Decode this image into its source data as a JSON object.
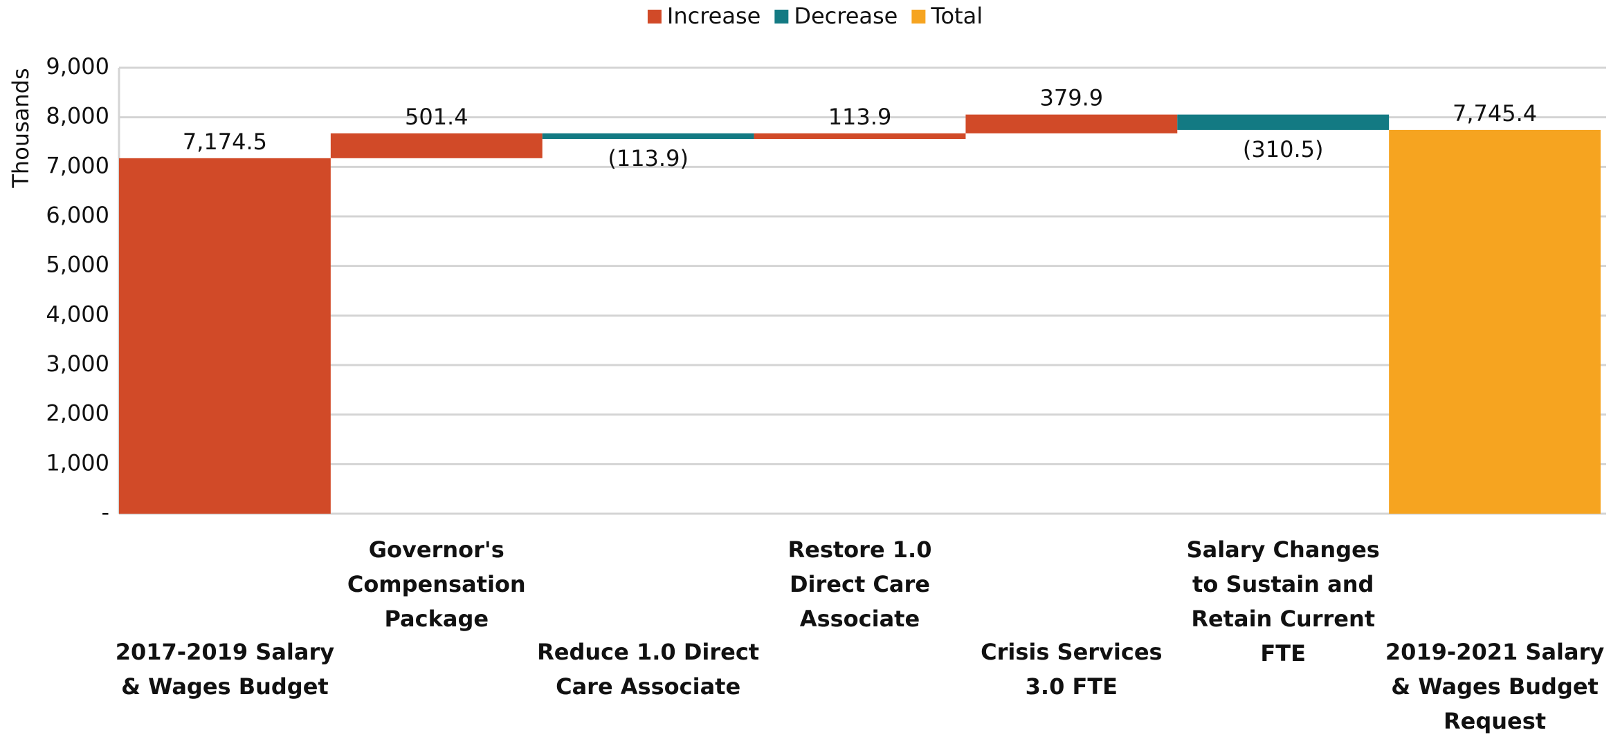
{
  "chart_data": {
    "type": "waterfall",
    "y_label": "Thousands",
    "categories": [
      "2017-2019 Salary & Wages Budget",
      "Governor's Compensation Package",
      "Reduce 1.0 Direct Care Associate",
      "Restore 1.0 Direct Care Associate",
      "Crisis Services 3.0 FTE",
      "Salary Changes to Sustain and Retain Current FTE",
      "2019-2021 Salary & Wages Budget Request"
    ],
    "values": [
      7174.5,
      501.4,
      -113.9,
      113.9,
      379.9,
      -310.5,
      7745.4
    ],
    "value_labels": [
      "7,174.5",
      "501.4",
      "(113.9)",
      "113.9",
      "379.9",
      "(310.5)",
      "7,745.4"
    ],
    "kinds": [
      "Increase",
      "Increase",
      "Decrease",
      "Increase",
      "Increase",
      "Decrease",
      "Total"
    ],
    "legend": [
      {
        "name": "Increase",
        "color": "#d14a28"
      },
      {
        "name": "Decrease",
        "color": "#137a83"
      },
      {
        "name": "Total",
        "color": "#f6a420"
      }
    ],
    "ylim": [
      0,
      9000
    ],
    "yticks": [
      {
        "value": 0,
        "label": "-"
      },
      {
        "value": 1000,
        "label": "1,000"
      },
      {
        "value": 2000,
        "label": "2,000"
      },
      {
        "value": 3000,
        "label": "3,000"
      },
      {
        "value": 4000,
        "label": "4,000"
      },
      {
        "value": 5000,
        "label": "5,000"
      },
      {
        "value": 6000,
        "label": "6,000"
      },
      {
        "value": 7000,
        "label": "7,000"
      },
      {
        "value": 8000,
        "label": "8,000"
      },
      {
        "value": 9000,
        "label": "9,000"
      }
    ],
    "grid": true
  }
}
